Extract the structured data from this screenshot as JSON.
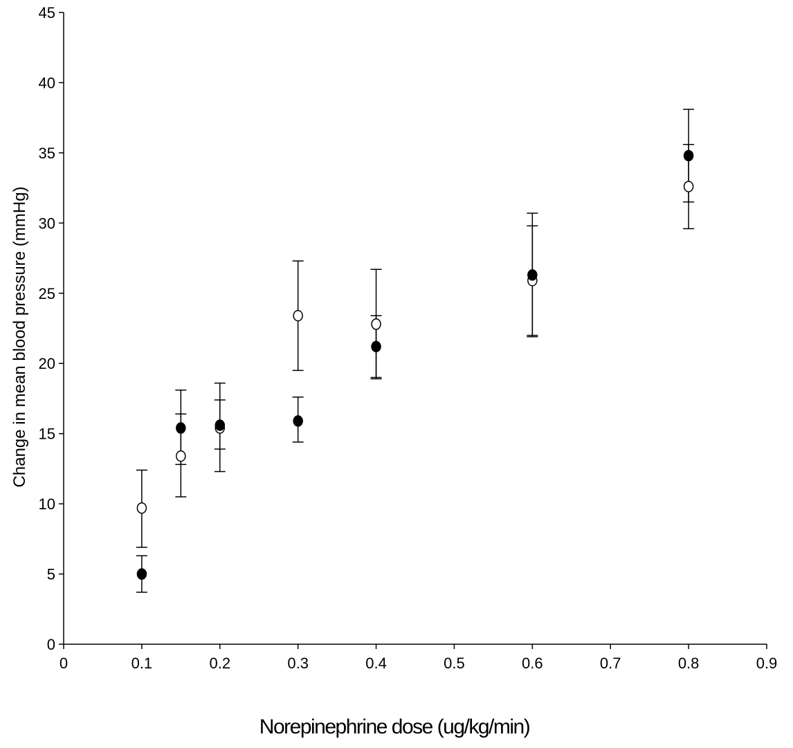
{
  "chart_data": {
    "type": "scatter",
    "title": "",
    "xlabel": "Norepinephrine dose (ug/kg/min)",
    "ylabel": "Change in mean blood pressure (mmHg)",
    "xlim": [
      0,
      0.9
    ],
    "ylim": [
      0,
      45
    ],
    "x_ticks": [
      "0",
      "0.1",
      "0.2",
      "0.3",
      "0.4",
      "0.5",
      "0.6",
      "0.7",
      "0.8",
      "0.9"
    ],
    "y_ticks": [
      "0",
      "5",
      "10",
      "15",
      "20",
      "25",
      "30",
      "35",
      "40",
      "45"
    ],
    "grid": false,
    "legend": "none",
    "series": [
      {
        "marker": "filled-circle",
        "color": "#000000",
        "x": [
          0.1,
          0.15,
          0.2,
          0.3,
          0.4,
          0.6,
          0.8
        ],
        "y": [
          5.0,
          15.4,
          15.6,
          15.9,
          21.2,
          26.3,
          34.8
        ],
        "error_plus": [
          1.3,
          1.0,
          1.8,
          1.7,
          2.2,
          3.5,
          3.3
        ],
        "error_minus": [
          1.3,
          2.6,
          1.7,
          1.5,
          2.3,
          4.3,
          3.3
        ]
      },
      {
        "marker": "open-circle",
        "color": "#000000",
        "x": [
          0.1,
          0.15,
          0.2,
          0.3,
          0.4,
          0.6,
          0.8
        ],
        "y": [
          9.7,
          13.4,
          15.4,
          23.4,
          22.8,
          25.9,
          32.6
        ],
        "error_plus": [
          2.7,
          4.7,
          3.2,
          3.9,
          3.9,
          4.8,
          3.0
        ],
        "error_minus": [
          2.8,
          2.9,
          3.1,
          3.9,
          3.8,
          4.0,
          3.0
        ]
      }
    ]
  }
}
